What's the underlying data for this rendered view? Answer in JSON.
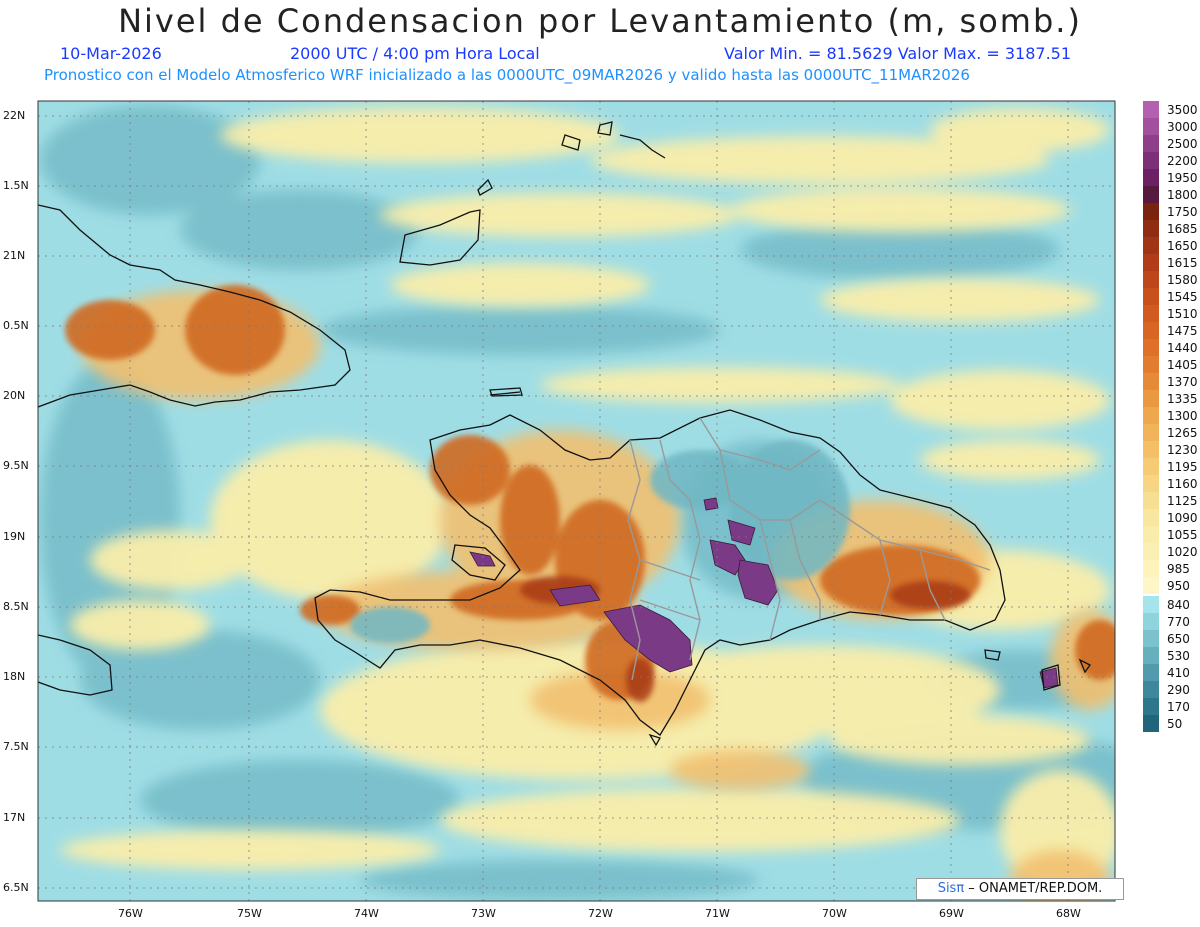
{
  "header": {
    "title": "Nivel de Condensacion por Levantamiento (m, somb.)",
    "date": "10-Mar-2026",
    "time": "2000 UTC / 4:00 pm Hora Local",
    "minmax": "Valor Min. = 81.5629   Valor Max. = 3187.51",
    "forecast_note": "Pronostico con el Modelo Atmosferico WRF inicializado a las 0000UTC_09MAR2026 y valido hasta las  0000UTC_11MAR2026"
  },
  "map": {
    "lat_labels": [
      "22N",
      "1.5N",
      "21N",
      "0.5N",
      "20N",
      "9.5N",
      "19N",
      "8.5N",
      "18N",
      "7.5N",
      "17N",
      "6.5N"
    ],
    "lon_labels": [
      "76W",
      "75W",
      "74W",
      "73W",
      "72W",
      "71W",
      "70W",
      "69W",
      "68W"
    ],
    "credit_brand": "Sisπ",
    "credit_text": " – ONAMET/REP.DOM."
  },
  "legend": {
    "labels": [
      "3500",
      "3000",
      "2500",
      "2200",
      "1950",
      "1800",
      "1750",
      "1685",
      "1650",
      "1615",
      "1580",
      "1545",
      "1510",
      "1475",
      "1440",
      "1405",
      "1370",
      "1335",
      "1300",
      "1265",
      "1230",
      "1195",
      "1160",
      "1125",
      "1090",
      "1055",
      "1020",
      "985",
      "950",
      "840",
      "770",
      "650",
      "530",
      "410",
      "290",
      "170",
      "50"
    ],
    "colors": [
      "#b45fb0",
      "#a24f9e",
      "#8f3f8a",
      "#7c3076",
      "#6a2262",
      "#561a40",
      "#7a2410",
      "#8f2d12",
      "#a03515",
      "#b03d18",
      "#bd461a",
      "#c7501d",
      "#d05a20",
      "#d86524",
      "#de7028",
      "#e27c2e",
      "#e68a37",
      "#ea9842",
      "#eea74d",
      "#f1b45a",
      "#f3c068",
      "#f5cb76",
      "#f7d585",
      "#f8de92",
      "#f9e69f",
      "#faecaa",
      "#fbf0b4",
      "#fcf3bd",
      "#fdf6c6",
      "#a4e4ea",
      "#8fd3dc",
      "#7cc2cc",
      "#66afbd",
      "#519bac",
      "#3e889c",
      "#2d768b",
      "#22657a"
    ]
  }
}
